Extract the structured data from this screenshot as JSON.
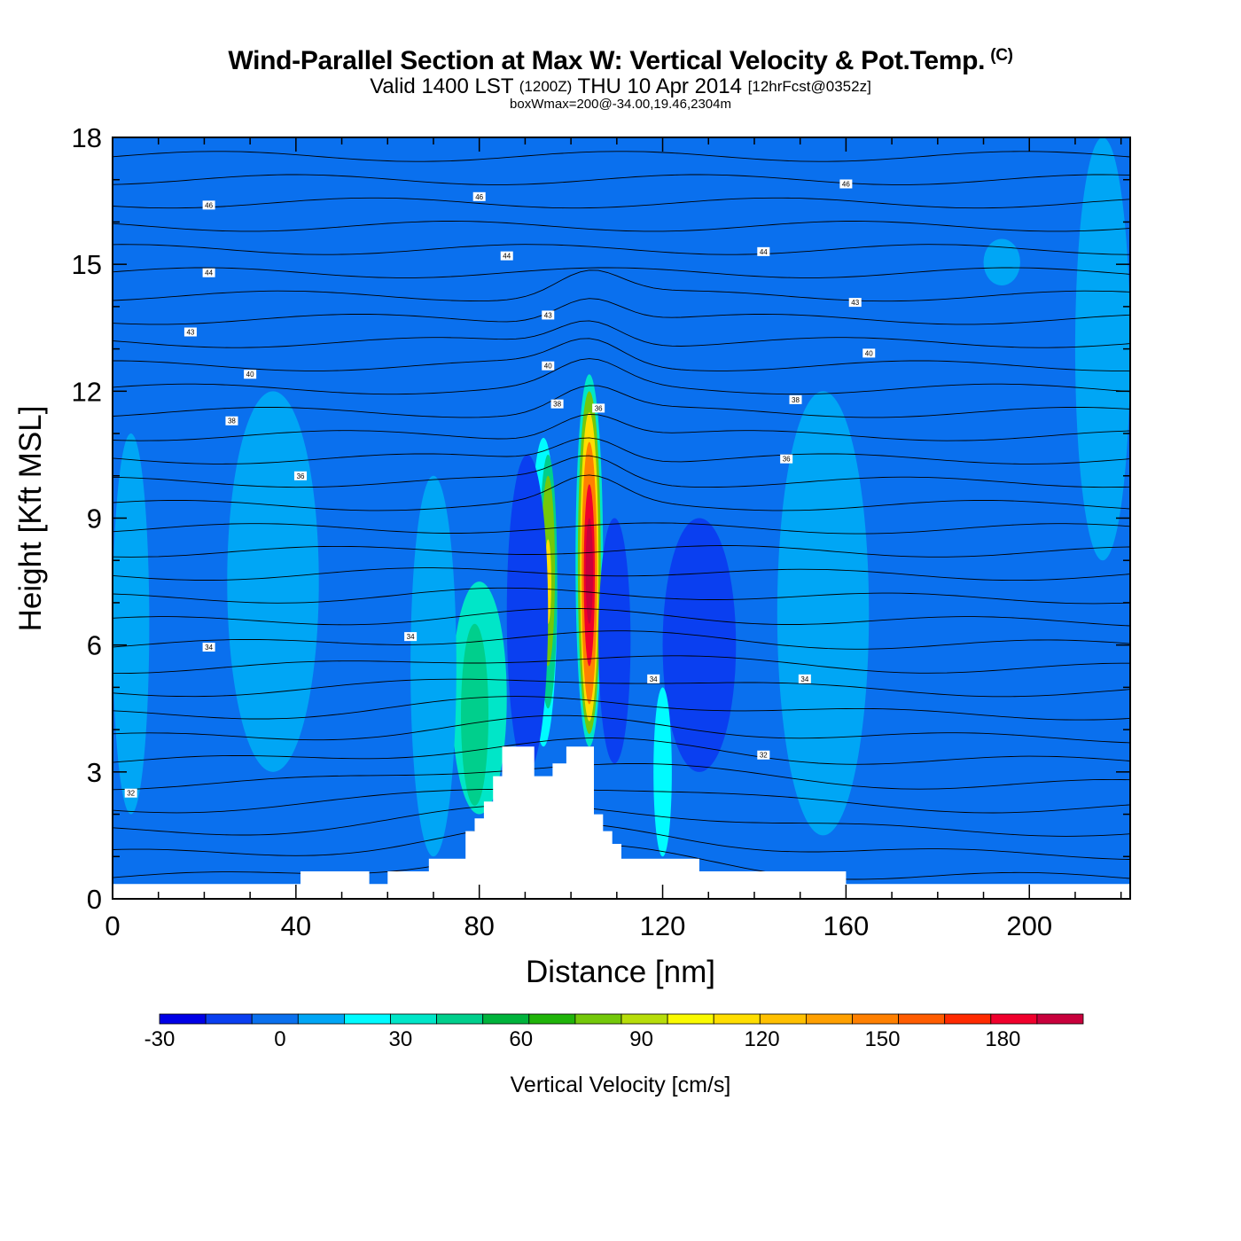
{
  "header": {
    "title": "Wind-Parallel Section at Max W: Vertical Velocity & Pot.Temp.",
    "copyright": "(C)",
    "subtitle_part1": "Valid 1400 LST",
    "subtitle_utc": "(1200Z)",
    "subtitle_part2": "THU 10 Apr 2014",
    "subtitle_fcst": "[12hrFcst@0352z]",
    "subtitle2": "boxWmax=200@-34.00,19.46,2304m"
  },
  "colors": {
    "background_field": "#0a70ee",
    "terrain": "#ffffff",
    "contour_line": "#000000"
  },
  "chart_data": {
    "type": "heatmap",
    "title": "Wind-Parallel Section at Max W: Vertical Velocity & Pot.Temp.",
    "xlabel": "Distance [nm]",
    "ylabel": "Height [Kft MSL]",
    "xlim": [
      0,
      222
    ],
    "ylim": [
      0,
      18
    ],
    "x_ticks": [
      0,
      40,
      80,
      120,
      160,
      200
    ],
    "y_ticks": [
      0,
      3,
      6,
      9,
      12,
      15,
      18
    ],
    "colorbar": {
      "title": "Vertical Velocity [cm/s]",
      "min": -30,
      "max": 200,
      "step": 10,
      "labels": [
        -30,
        0,
        30,
        60,
        90,
        120,
        150,
        180
      ],
      "colors": [
        "#0000e6",
        "#0a3ff0",
        "#0a70ee",
        "#00a6f5",
        "#00fbff",
        "#00e6c8",
        "#00cf8c",
        "#00b33c",
        "#20b40a",
        "#74c80a",
        "#b7dd0a",
        "#fafa00",
        "#ffde00",
        "#ffc000",
        "#ffa000",
        "#ff8000",
        "#ff5c00",
        "#ff2a00",
        "#f0002c",
        "#c8003c"
      ]
    },
    "vertical_velocity_cells": [
      {
        "x": [
          91,
          97
        ],
        "y": [
          3.6,
          10.9
        ],
        "value": 10
      },
      {
        "x": [
          93,
          97
        ],
        "y": [
          4.5,
          10.5
        ],
        "value": 30
      },
      {
        "x": [
          93.5,
          96.5
        ],
        "y": [
          5.5,
          10.0
        ],
        "value": 60
      },
      {
        "x": [
          94.3,
          95.7
        ],
        "y": [
          6.5,
          8.5
        ],
        "value": 90
      },
      {
        "x": [
          101,
          107
        ],
        "y": [
          3.6,
          12.4
        ],
        "value": 20
      },
      {
        "x": [
          101.5,
          106.5
        ],
        "y": [
          3.9,
          12.0
        ],
        "value": 60
      },
      {
        "x": [
          102,
          106
        ],
        "y": [
          4.2,
          11.5
        ],
        "value": 90
      },
      {
        "x": [
          102.3,
          105.7
        ],
        "y": [
          4.6,
          10.8
        ],
        "value": 120
      },
      {
        "x": [
          102.8,
          105.2
        ],
        "y": [
          5.5,
          9.8
        ],
        "value": 150
      },
      {
        "x": [
          103.2,
          104.8
        ],
        "y": [
          6.5,
          9.0
        ],
        "value": 180
      },
      {
        "x": [
          74,
          86
        ],
        "y": [
          2.0,
          7.5
        ],
        "value": 20
      },
      {
        "x": [
          76,
          82
        ],
        "y": [
          2.2,
          6.5
        ],
        "value": 35
      },
      {
        "x": [
          86,
          95
        ],
        "y": [
          3.0,
          10.5
        ],
        "value": -15
      },
      {
        "x": [
          106,
          113
        ],
        "y": [
          3.2,
          9.0
        ],
        "value": -15
      },
      {
        "x": [
          120,
          136
        ],
        "y": [
          3.0,
          9.0
        ],
        "value": -15
      },
      {
        "x": [
          118,
          122
        ],
        "y": [
          1.0,
          5.0
        ],
        "value": 15
      },
      {
        "x": [
          0,
          8
        ],
        "y": [
          2.0,
          11.0
        ],
        "value": 5
      },
      {
        "x": [
          25,
          45
        ],
        "y": [
          3.0,
          12.0
        ],
        "value": 5
      },
      {
        "x": [
          65,
          75
        ],
        "y": [
          1.0,
          10.0
        ],
        "value": 5
      },
      {
        "x": [
          145,
          165
        ],
        "y": [
          1.5,
          12.0
        ],
        "value": 5
      },
      {
        "x": [
          210,
          222
        ],
        "y": [
          8.0,
          18.0
        ],
        "value": 5
      },
      {
        "x": [
          190,
          198
        ],
        "y": [
          14.5,
          15.6
        ],
        "value": 5
      }
    ],
    "theta_contour_labels": [
      {
        "text": "46",
        "x": 21,
        "y": 16.4
      },
      {
        "text": "46",
        "x": 80,
        "y": 16.6
      },
      {
        "text": "46",
        "x": 160,
        "y": 16.9
      },
      {
        "text": "44",
        "x": 21,
        "y": 14.8
      },
      {
        "text": "44",
        "x": 86,
        "y": 15.2
      },
      {
        "text": "44",
        "x": 142,
        "y": 15.3
      },
      {
        "text": "43",
        "x": 17,
        "y": 13.4
      },
      {
        "text": "43",
        "x": 95,
        "y": 13.8
      },
      {
        "text": "43",
        "x": 162,
        "y": 14.1
      },
      {
        "text": "40",
        "x": 30,
        "y": 12.4
      },
      {
        "text": "40",
        "x": 95,
        "y": 12.6
      },
      {
        "text": "40",
        "x": 165,
        "y": 12.9
      },
      {
        "text": "38",
        "x": 26,
        "y": 11.3
      },
      {
        "text": "38",
        "x": 97,
        "y": 11.7
      },
      {
        "text": "38",
        "x": 149,
        "y": 11.8
      },
      {
        "text": "36",
        "x": 41,
        "y": 10.0
      },
      {
        "text": "36",
        "x": 106,
        "y": 11.6
      },
      {
        "text": "36",
        "x": 147,
        "y": 10.4
      },
      {
        "text": "34",
        "x": 21,
        "y": 5.95
      },
      {
        "text": "34",
        "x": 65,
        "y": 6.2
      },
      {
        "text": "34",
        "x": 118,
        "y": 5.2
      },
      {
        "text": "34",
        "x": 151,
        "y": 5.2
      },
      {
        "text": "32",
        "x": 4,
        "y": 2.5
      },
      {
        "text": "32",
        "x": 142,
        "y": 3.4
      }
    ]
  }
}
